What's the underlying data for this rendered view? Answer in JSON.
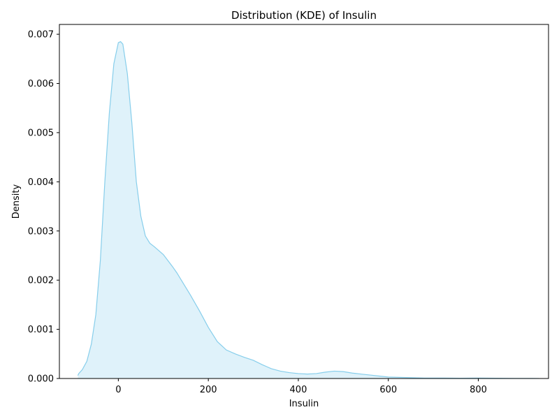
{
  "chart_data": {
    "type": "area",
    "title": "Distribution (KDE) of Insulin",
    "xlabel": "Insulin",
    "ylabel": "Density",
    "xlim": [
      -131,
      956
    ],
    "ylim": [
      0,
      0.0072
    ],
    "xticks": [
      0,
      200,
      400,
      600,
      800
    ],
    "xtick_labels": [
      "0",
      "200",
      "400",
      "600",
      "800"
    ],
    "yticks": [
      0,
      0.001,
      0.002,
      0.003,
      0.004,
      0.005,
      0.006,
      0.007
    ],
    "ytick_labels": [
      "0.000",
      "0.001",
      "0.002",
      "0.003",
      "0.004",
      "0.005",
      "0.006",
      "0.007"
    ],
    "grid": false,
    "colors": {
      "line": "#87ceeb",
      "fill": "#87ceeb",
      "fill_opacity": 0.27
    },
    "series": [
      {
        "name": "Insulin",
        "x": [
          -90,
          -88,
          -80,
          -70,
          -60,
          -50,
          -40,
          -30,
          -20,
          -10,
          0,
          5,
          10,
          20,
          30,
          40,
          50,
          60,
          70,
          80,
          90,
          100,
          110,
          120,
          130,
          140,
          160,
          180,
          200,
          220,
          240,
          260,
          280,
          300,
          320,
          340,
          360,
          380,
          400,
          420,
          440,
          460,
          480,
          500,
          520,
          540,
          560,
          580,
          600,
          640,
          680,
          720,
          760,
          800,
          840,
          880,
          935
        ],
        "y": [
          6e-05,
          0.0001,
          0.00018,
          0.00035,
          0.0007,
          0.0013,
          0.0024,
          0.004,
          0.0054,
          0.0064,
          0.00683,
          0.00685,
          0.0068,
          0.0062,
          0.0052,
          0.004,
          0.0033,
          0.0029,
          0.00275,
          0.00268,
          0.0026,
          0.00252,
          0.0024,
          0.00228,
          0.00215,
          0.002,
          0.0017,
          0.00138,
          0.00104,
          0.00075,
          0.00058,
          0.0005,
          0.00043,
          0.00037,
          0.00028,
          0.0002,
          0.00015,
          0.00012,
          0.0001,
          9e-05,
          0.0001,
          0.00013,
          0.00015,
          0.00014,
          0.00011,
          9e-05,
          7e-05,
          5e-05,
          3e-05,
          2e-05,
          1e-05,
          1e-05,
          5e-06,
          1e-05,
          5e-06,
          3e-06,
          1e-06
        ]
      }
    ]
  }
}
